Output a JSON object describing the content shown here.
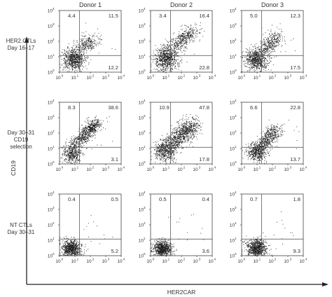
{
  "figure": {
    "x_axis_label": "HER2CAR",
    "y_axis_label": "CD19",
    "tick_base": "10",
    "tick_exponents": [
      "0",
      "1",
      "2",
      "3",
      "4"
    ]
  },
  "columns": [
    {
      "label": "Donor 1"
    },
    {
      "label": "Donor 2"
    },
    {
      "label": "Donor 3"
    }
  ],
  "rows": [
    {
      "label_lines": [
        "HER2.CTLs",
        "Day 16–17"
      ]
    },
    {
      "label_lines": [
        "Day 30–31",
        "CD19",
        "selection"
      ]
    },
    {
      "label_lines": [
        "NT CTLs",
        "Day 30–31"
      ]
    }
  ],
  "chart_data": {
    "type": "scatter",
    "x_axis": {
      "label": "HER2CAR",
      "scale": "log",
      "range": [
        1,
        10000
      ],
      "ticks": [
        "10^0",
        "10^1",
        "10^2",
        "10^3",
        "10^4"
      ]
    },
    "y_axis": {
      "label": "CD19",
      "scale": "log",
      "range": [
        1,
        10000
      ],
      "ticks": [
        "10^0",
        "10^1",
        "10^2",
        "10^3",
        "10^4"
      ]
    },
    "quadrant_gate": {
      "x": 20,
      "y": 12
    },
    "quadrant_order": [
      "upper-left",
      "upper-right",
      "lower-right"
    ],
    "panels": [
      {
        "row": 0,
        "col": 0,
        "quadrants": [
          "4.4",
          "11.5",
          "12.2"
        ],
        "cloud": {
          "cx": 0.9,
          "cy": 0.85,
          "sx": 0.35,
          "sy": 0.35,
          "n": 700,
          "tail": {
            "x1": 1.3,
            "y1": 1.5,
            "x2": 2.2,
            "y2": 2.1,
            "n": 260,
            "spread": 0.3
          }
        }
      },
      {
        "row": 0,
        "col": 1,
        "quadrants": [
          "3.4",
          "16.4",
          "22.8"
        ],
        "cloud": {
          "cx": 1.0,
          "cy": 0.9,
          "sx": 0.38,
          "sy": 0.38,
          "n": 750,
          "tail": {
            "x1": 1.4,
            "y1": 1.5,
            "x2": 2.7,
            "y2": 2.7,
            "n": 420,
            "spread": 0.3
          }
        }
      },
      {
        "row": 0,
        "col": 2,
        "quadrants": [
          "5.0",
          "12.3",
          "17.5"
        ],
        "cloud": {
          "cx": 0.95,
          "cy": 0.85,
          "sx": 0.36,
          "sy": 0.36,
          "n": 720,
          "tail": {
            "x1": 1.4,
            "y1": 1.4,
            "x2": 2.3,
            "y2": 2.3,
            "n": 340,
            "spread": 0.3
          }
        }
      },
      {
        "row": 1,
        "col": 0,
        "quadrants": [
          "8.3",
          "38.6",
          "3.1"
        ],
        "cloud": {
          "cx": 0.8,
          "cy": 0.7,
          "sx": 0.3,
          "sy": 0.35,
          "n": 450,
          "tail": {
            "x1": 1.1,
            "y1": 1.4,
            "x2": 2.4,
            "y2": 2.7,
            "n": 650,
            "spread": 0.24
          }
        }
      },
      {
        "row": 1,
        "col": 1,
        "quadrants": [
          "10.9",
          "47.8",
          "17.8"
        ],
        "cloud": {
          "cx": 0.95,
          "cy": 0.85,
          "sx": 0.35,
          "sy": 0.35,
          "n": 500,
          "tail": {
            "x1": 1.2,
            "y1": 1.2,
            "x2": 2.8,
            "y2": 2.6,
            "n": 900,
            "spread": 0.34
          }
        }
      },
      {
        "row": 1,
        "col": 2,
        "quadrants": [
          "6.6",
          "22.8",
          "13.7"
        ],
        "cloud": {
          "cx": 1.0,
          "cy": 0.8,
          "sx": 0.3,
          "sy": 0.3,
          "n": 500,
          "tail": {
            "x1": 1.3,
            "y1": 1.1,
            "x2": 2.2,
            "y2": 2.3,
            "n": 450,
            "spread": 0.26
          }
        }
      },
      {
        "row": 2,
        "col": 0,
        "quadrants": [
          "0.4",
          "0.5",
          "5.2"
        ],
        "cloud": {
          "cx": 0.75,
          "cy": 0.45,
          "sx": 0.3,
          "sy": 0.28,
          "n": 800
        }
      },
      {
        "row": 2,
        "col": 1,
        "quadrants": [
          "0.5",
          "0.4",
          "3.6"
        ],
        "cloud": {
          "cx": 0.75,
          "cy": 0.45,
          "sx": 0.3,
          "sy": 0.26,
          "n": 800
        }
      },
      {
        "row": 2,
        "col": 2,
        "quadrants": [
          "0.7",
          "1.8",
          "9.3"
        ],
        "cloud": {
          "cx": 0.95,
          "cy": 0.5,
          "sx": 0.32,
          "sy": 0.28,
          "n": 800
        }
      }
    ]
  }
}
